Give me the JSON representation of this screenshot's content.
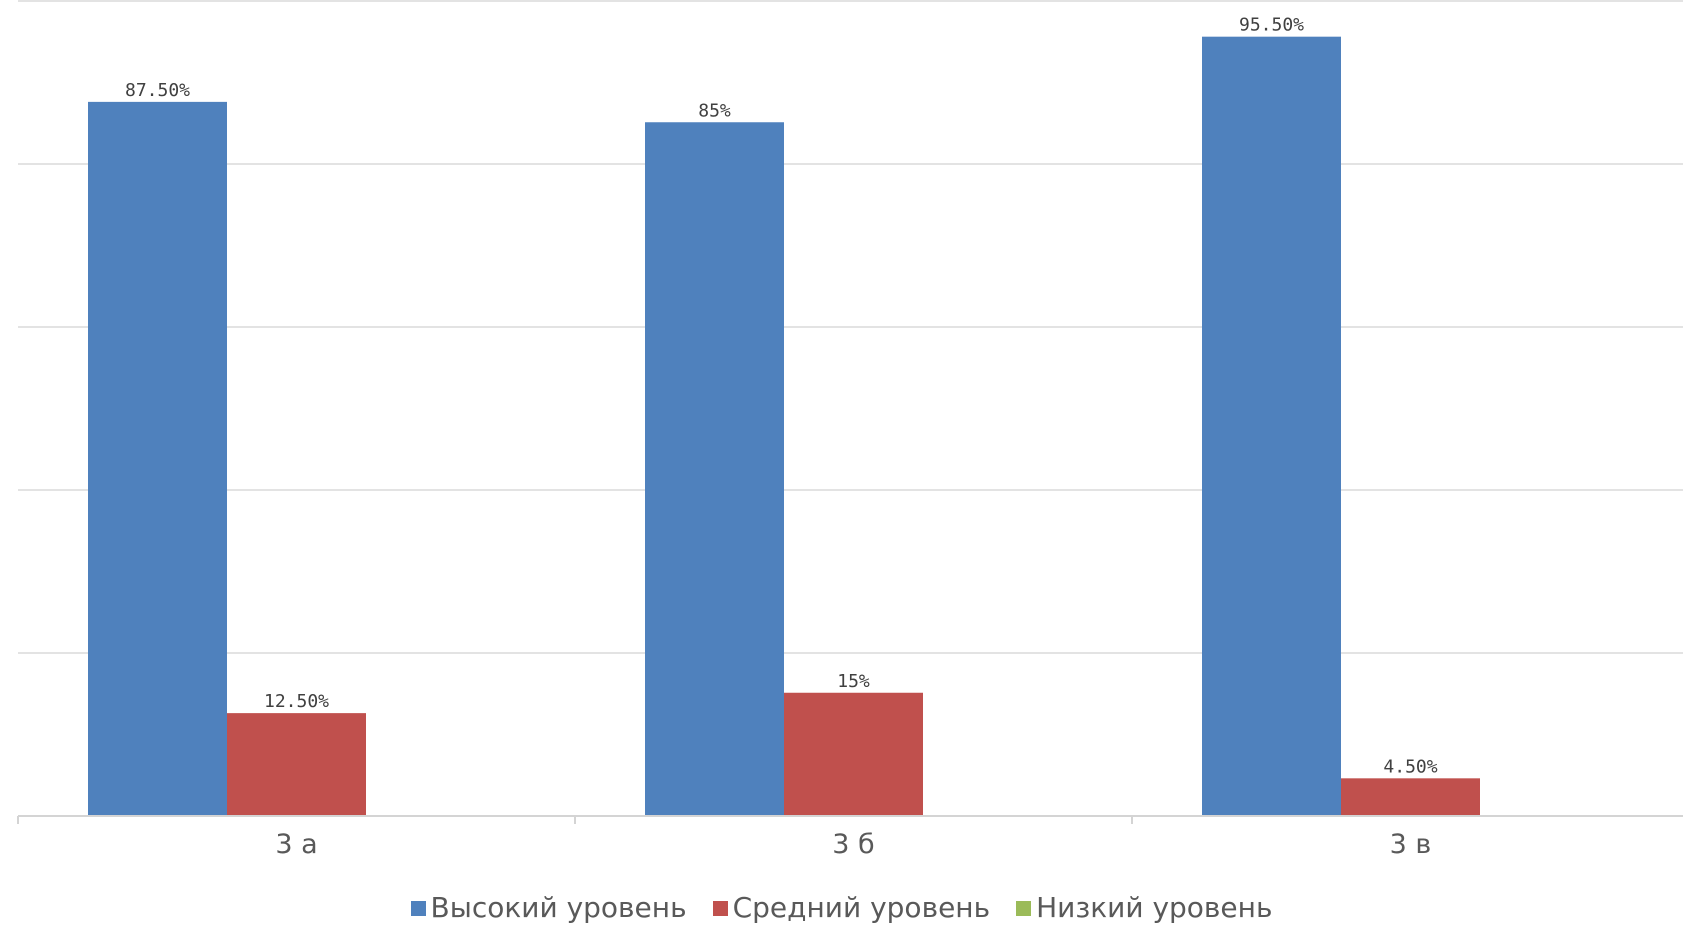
{
  "chart_data": {
    "type": "bar",
    "categories": [
      "3 а",
      "3 б",
      "3 в"
    ],
    "series": [
      {
        "name": "Высокий уровень",
        "values": [
          87.5,
          85,
          95.5
        ],
        "labels": [
          "87.50%",
          "85%",
          "95.50%"
        ],
        "color": "#4f81bd"
      },
      {
        "name": "Средний уровень",
        "values": [
          12.5,
          15,
          4.5
        ],
        "labels": [
          "12.50%",
          "15%",
          "4.50%"
        ],
        "color": "#c0504d"
      },
      {
        "name": "Низкий уровень",
        "values": [
          0,
          0,
          0
        ],
        "labels": [
          "",
          "",
          ""
        ],
        "color": "#9bbb59"
      }
    ],
    "ylim": [
      0,
      100
    ],
    "grid": true,
    "legend_position": "bottom"
  }
}
